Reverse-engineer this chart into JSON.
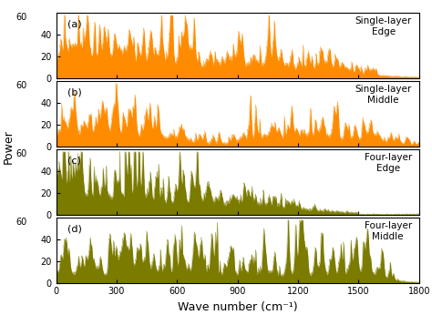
{
  "orange_color": "#FF8C00",
  "olive_color": "#7B7B00",
  "background_color": "#ffffff",
  "xlabel": "Wave number (cm⁻¹)",
  "ylabel": "Power",
  "xlim": [
    0,
    1800
  ],
  "xticks": [
    0,
    300,
    600,
    900,
    1200,
    1500,
    1800
  ],
  "ylim": [
    0,
    60
  ],
  "yticks": [
    0,
    20,
    40
  ],
  "subplots": [
    {
      "label": "(a)",
      "annotation": "Single-layer\nEdge",
      "color": "#FF8C00",
      "style": "a"
    },
    {
      "label": "(b)",
      "annotation": "Single-layer\nMiddle",
      "color": "#FF8C00",
      "style": "b"
    },
    {
      "label": "(c)",
      "annotation": "Four-layer\nEdge",
      "color": "#7B7B00",
      "style": "c"
    },
    {
      "label": "(d)",
      "annotation": "Four-layer\nMiddle",
      "color": "#7B7B00",
      "style": "d"
    }
  ]
}
